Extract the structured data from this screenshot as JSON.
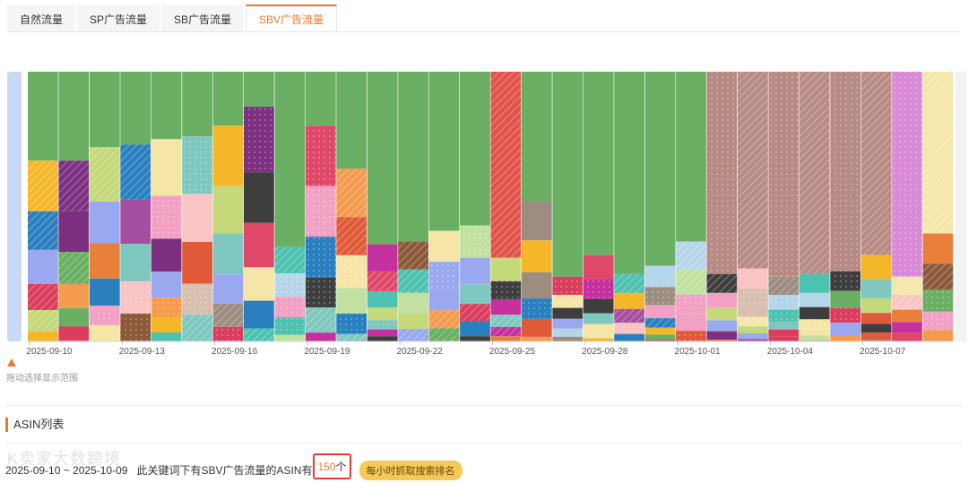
{
  "tabs": [
    {
      "label": "自然流量",
      "active": false
    },
    {
      "label": "SP广告流量",
      "active": false
    },
    {
      "label": "SB广告流量",
      "active": false
    },
    {
      "label": "SBV广告流量",
      "active": true
    }
  ],
  "chart_data": {
    "type": "bar",
    "stacked": true,
    "percent_stacked": true,
    "x_tick_labels": [
      "2025-09-10",
      "2025-09-13",
      "2025-09-16",
      "2025-09-19",
      "2025-09-22",
      "2025-09-25",
      "2025-09-28",
      "2025-10-01",
      "2025-10-04",
      "2025-10-07"
    ],
    "x_range": [
      "2025-09-10",
      "2025-10-09"
    ],
    "bar_count": 30,
    "ylim": [
      0,
      100
    ],
    "grid": false,
    "legend": "none",
    "top_segment_share_percent": [
      33,
      33,
      28,
      27,
      25,
      24,
      20,
      13,
      65,
      20,
      36,
      64,
      63,
      59,
      57,
      69,
      48,
      76,
      68,
      75,
      72,
      63,
      75,
      73,
      76,
      75,
      74,
      68,
      76,
      60
    ],
    "top_segment_color": [
      "#6aaf63",
      "#6aaf63",
      "#6aaf63",
      "#6aaf63",
      "#6aaf63",
      "#6aaf63",
      "#6aaf63",
      "#6aaf63",
      "#6aaf63",
      "#6aaf63",
      "#6aaf63",
      "#6aaf63",
      "#6aaf63",
      "#6aaf63",
      "#6aaf63",
      "#e0524b",
      "#6aaf63",
      "#6aaf63",
      "#6aaf63",
      "#6aaf63",
      "#6aaf63",
      "#6aaf63",
      "#b88a84",
      "#b88a84",
      "#b88a84",
      "#b88a84",
      "#b88a84",
      "#b88a84",
      "#d88ad6",
      "#f5e6a8"
    ]
  },
  "zoom_hint": "拖动选择显示范围",
  "asin_section_title": "ASIN列表",
  "summary": {
    "date_range": "2025-09-10 ~ 2025-10-09",
    "text_before": "此关键词下有SBV广告流量的ASIN有",
    "count": "150",
    "text_after": "个",
    "hourly_button": "每小时抓取搜索排名"
  },
  "watermark": "K卖家大数跨境",
  "colors": {
    "accent": "#f0762e",
    "highlight_box": "#e23a3a",
    "button_bg": "#f5c85a"
  }
}
